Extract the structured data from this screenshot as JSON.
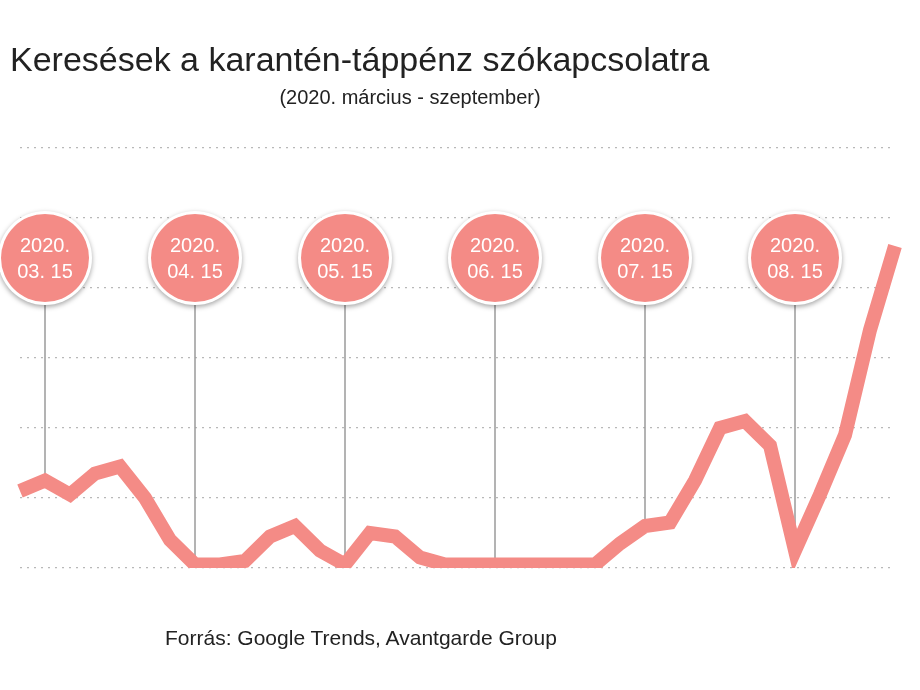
{
  "chart_data": {
    "type": "line",
    "title": "Keresések a karantén-táppénz szókapcsolatra",
    "subtitle": "(2020. március - szeptember)",
    "source": "Forrás: Google Trends, Avantgarde Group",
    "categories": [
      null,
      "2020. 03. 15",
      null,
      null,
      null,
      null,
      null,
      "2020. 04. 15",
      null,
      null,
      null,
      null,
      null,
      "2020. 05. 15",
      null,
      null,
      null,
      null,
      null,
      "2020. 06. 15",
      null,
      null,
      null,
      null,
      null,
      "2020. 07. 15",
      null,
      null,
      null,
      null,
      null,
      "2020. 08. 15",
      null,
      null,
      null,
      null
    ],
    "values": [
      22,
      25,
      21,
      27,
      29,
      20,
      8,
      1,
      1,
      2,
      9,
      12,
      5,
      1,
      10,
      9,
      3,
      1,
      1,
      1,
      1,
      1,
      1,
      1,
      7,
      12,
      13,
      25,
      40,
      42,
      35,
      5,
      21,
      38,
      68,
      92
    ],
    "color": "#f48b86",
    "ylim": [
      0,
      120
    ],
    "yticks": [
      0,
      20,
      40,
      60,
      80,
      100,
      120
    ],
    "grid": true,
    "tick_labels": false
  }
}
